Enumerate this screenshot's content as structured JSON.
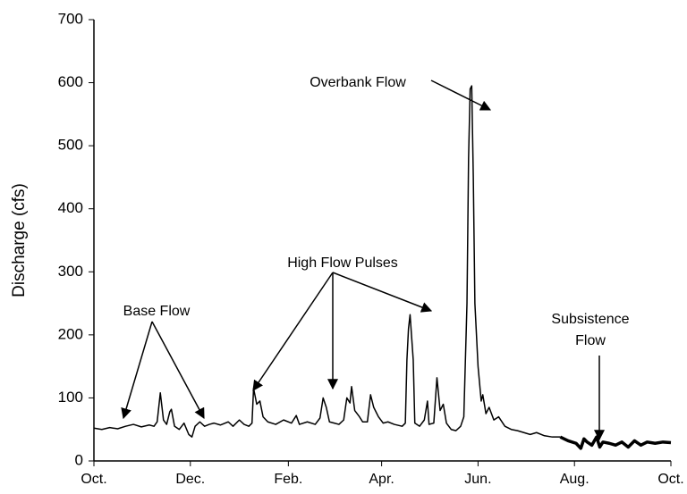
{
  "chart_data": {
    "type": "line",
    "y_label": "Discharge (cfs)",
    "ylim": [
      0,
      700
    ],
    "yticks": [
      0,
      100,
      200,
      300,
      400,
      500,
      600,
      700
    ],
    "xlim": [
      0,
      365
    ],
    "xticks": [
      {
        "value": 0,
        "label": "Oct."
      },
      {
        "value": 61,
        "label": "Dec."
      },
      {
        "value": 123,
        "label": "Feb."
      },
      {
        "value": 182,
        "label": "Apr."
      },
      {
        "value": 243,
        "label": "Jun."
      },
      {
        "value": 304,
        "label": "Aug."
      },
      {
        "value": 365,
        "label": "Oct."
      }
    ],
    "grid": false,
    "annotations": [
      "Base Flow",
      "High Flow Pulses",
      "Overbank Flow",
      "Subsistence",
      "Flow"
    ],
    "series": [
      {
        "color": "#000000",
        "line_width": 1.5,
        "x": [
          0,
          5,
          10,
          15,
          20,
          25,
          30,
          35,
          38,
          40,
          42,
          44,
          46,
          48,
          49,
          51,
          54,
          57,
          60,
          62,
          64,
          67,
          70,
          73,
          76,
          80,
          85,
          88,
          92,
          95,
          98,
          100,
          101,
          103,
          105,
          107,
          110,
          115,
          120,
          125,
          128,
          130,
          135,
          140,
          143,
          145,
          147,
          149,
          152,
          155,
          158,
          160,
          162,
          163,
          165,
          168,
          170,
          173,
          175,
          177,
          180,
          183,
          186,
          190,
          195,
          197,
          198,
          199,
          200,
          202,
          203,
          206,
          209,
          211,
          212,
          215,
          217,
          219,
          221,
          223,
          226,
          229,
          232,
          234,
          236,
          237,
          238,
          239,
          240,
          241,
          243,
          245,
          246,
          248,
          250,
          253,
          256,
          260,
          264,
          268,
          272,
          276,
          280,
          285,
          290,
          295
        ],
        "values": [
          52,
          50,
          53,
          51,
          55,
          58,
          54,
          57,
          55,
          62,
          108,
          65,
          58,
          78,
          82,
          55,
          50,
          60,
          42,
          38,
          55,
          62,
          55,
          58,
          60,
          57,
          62,
          55,
          65,
          58,
          55,
          60,
          115,
          90,
          95,
          70,
          62,
          58,
          65,
          60,
          72,
          58,
          62,
          58,
          68,
          100,
          85,
          62,
          60,
          58,
          65,
          100,
          92,
          118,
          80,
          70,
          62,
          62,
          105,
          85,
          70,
          60,
          62,
          58,
          55,
          60,
          160,
          210,
          232,
          160,
          60,
          55,
          65,
          95,
          58,
          60,
          132,
          80,
          90,
          60,
          50,
          48,
          55,
          70,
          250,
          480,
          590,
          595,
          450,
          250,
          150,
          95,
          105,
          75,
          85,
          65,
          70,
          55,
          50,
          48,
          45,
          42,
          45,
          40,
          38,
          38
        ]
      },
      {
        "color": "#000000",
        "line_width": 3.5,
        "x": [
          295,
          300,
          305,
          308,
          310,
          312,
          315,
          318,
          320,
          322,
          326,
          330,
          334,
          338,
          342,
          346,
          350,
          355,
          360,
          365
        ],
        "values": [
          38,
          32,
          28,
          20,
          35,
          30,
          25,
          38,
          22,
          30,
          28,
          25,
          30,
          22,
          32,
          25,
          30,
          28,
          30,
          29
        ]
      }
    ]
  }
}
